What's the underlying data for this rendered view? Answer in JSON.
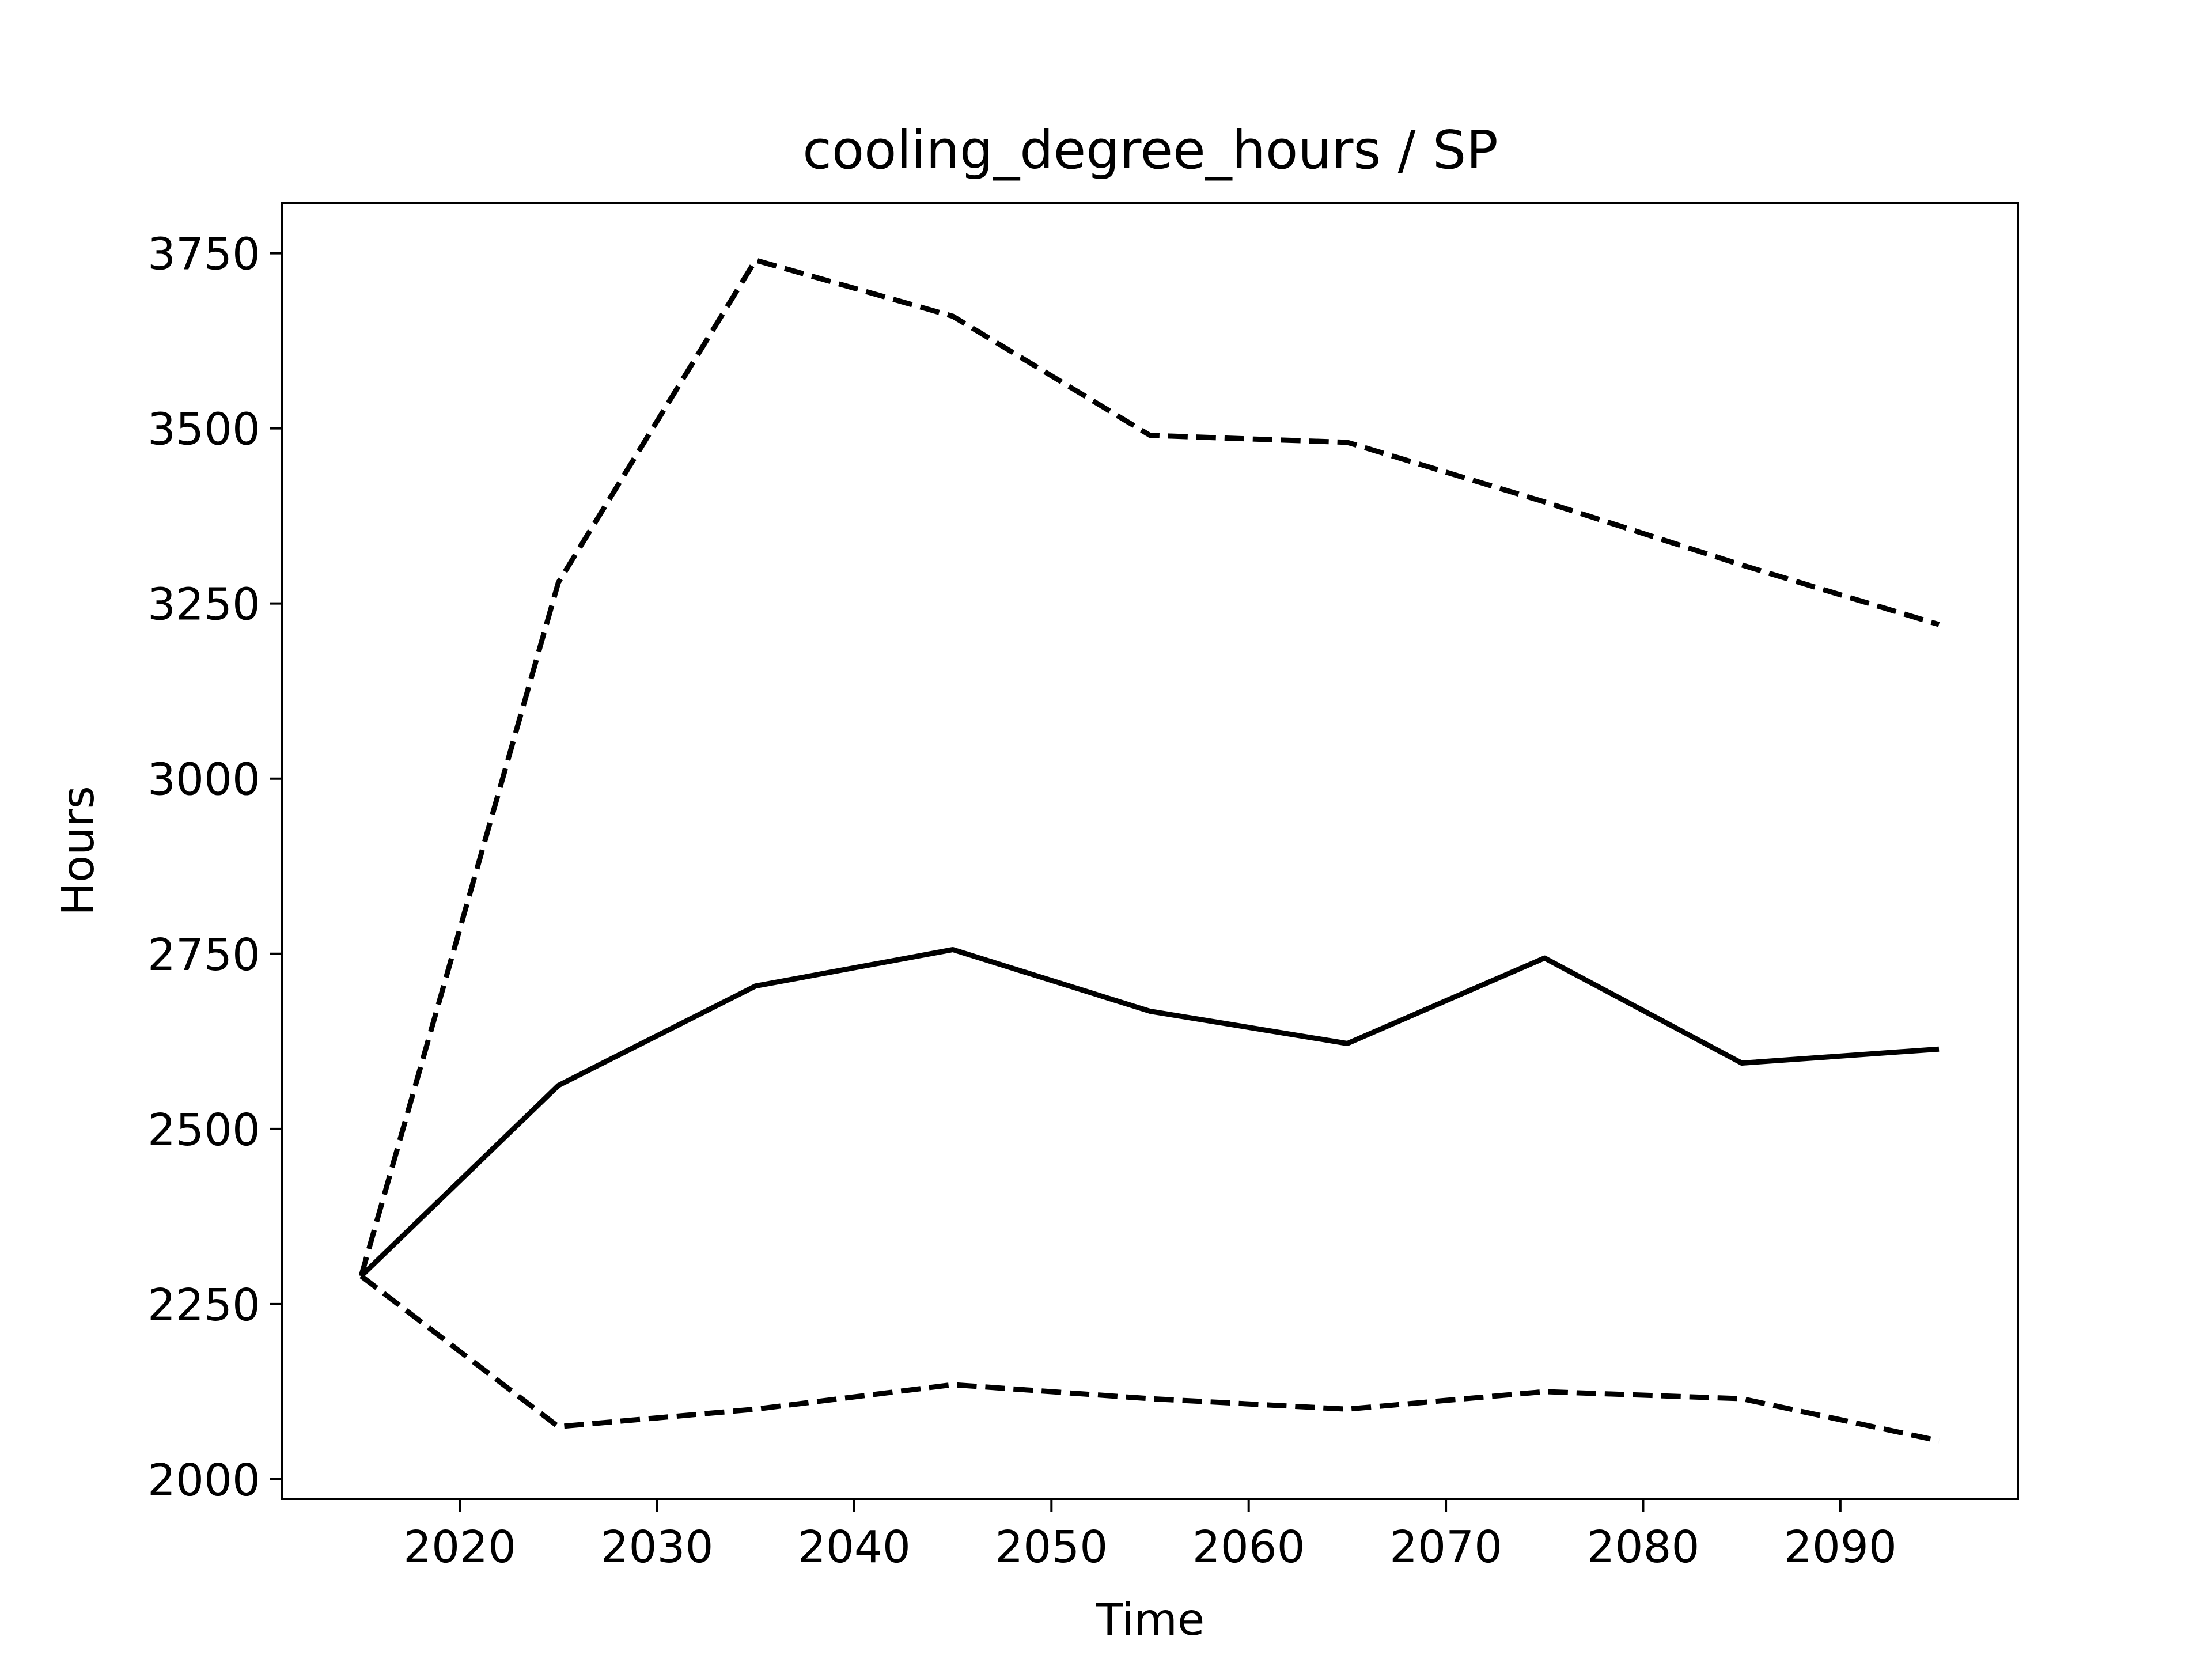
{
  "chart_data": {
    "type": "line",
    "title": "cooling_degree_hours / SP",
    "xlabel": "Time",
    "ylabel": "Hours",
    "xlim": [
      2011,
      2099
    ],
    "ylim": [
      1972,
      3822
    ],
    "x_ticks": [
      2020,
      2030,
      2040,
      2050,
      2060,
      2070,
      2080,
      2090
    ],
    "x_tick_labels": [
      "2020",
      "2030",
      "2040",
      "2050",
      "2060",
      "2070",
      "2080",
      "2090"
    ],
    "y_ticks": [
      2000,
      2250,
      2500,
      2750,
      3000,
      3250,
      3500,
      3750
    ],
    "y_tick_labels": [
      "2000",
      "2250",
      "2500",
      "2750",
      "3000",
      "3250",
      "3500",
      "3750"
    ],
    "grid": false,
    "legend": "none",
    "x": [
      2015,
      2025,
      2035,
      2045,
      2055,
      2065,
      2075,
      2085,
      2095
    ],
    "series": [
      {
        "values": [
          2290,
          2562,
          2704,
          2756,
          2668,
          2622,
          2744,
          2594,
          2614
        ],
        "style": "solid",
        "color": "#000000"
      },
      {
        "values": [
          2290,
          3280,
          3740,
          3660,
          3490,
          3480,
          3395,
          3305,
          3220
        ],
        "style": "dashed",
        "color": "#000000"
      },
      {
        "values": [
          2290,
          2075,
          2100,
          2135,
          2115,
          2100,
          2125,
          2115,
          2055
        ],
        "style": "dashed",
        "color": "#000000"
      }
    ]
  }
}
